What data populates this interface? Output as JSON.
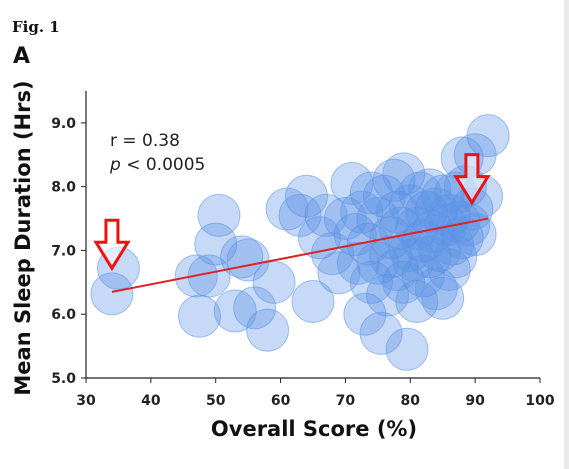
{
  "figure": {
    "label": "Fig. 1",
    "panel": "A"
  },
  "chart_data": {
    "type": "scatter",
    "title": "",
    "xlabel": "Overall Score (%)",
    "ylabel": "Mean Sleep Duration (Hrs)",
    "xlim": [
      30,
      100
    ],
    "ylim": [
      5.0,
      9.5
    ],
    "xticks": [
      "30",
      "40",
      "50",
      "60",
      "70",
      "80",
      "90",
      "100"
    ],
    "yticks": [
      "5.0",
      "6.0",
      "7.0",
      "8.0",
      "9.0"
    ],
    "annotation": {
      "r_text": "r = 0.38",
      "p_symbol": "p",
      "p_rest": " < 0.0005"
    },
    "trendline": {
      "x": [
        34,
        92
      ],
      "y": [
        6.35,
        7.5
      ],
      "color": "#dd2222"
    },
    "marker_color": "#5b93e6",
    "grid": false,
    "points": [
      {
        "x": 34,
        "y": 6.32
      },
      {
        "x": 35,
        "y": 6.72
      },
      {
        "x": 47,
        "y": 6.6
      },
      {
        "x": 47.5,
        "y": 5.97
      },
      {
        "x": 49,
        "y": 6.6
      },
      {
        "x": 50,
        "y": 7.1
      },
      {
        "x": 50.5,
        "y": 7.55
      },
      {
        "x": 53,
        "y": 6.05
      },
      {
        "x": 54,
        "y": 6.9
      },
      {
        "x": 55,
        "y": 6.85
      },
      {
        "x": 56,
        "y": 6.1
      },
      {
        "x": 58,
        "y": 5.75
      },
      {
        "x": 59,
        "y": 6.5
      },
      {
        "x": 61,
        "y": 7.65
      },
      {
        "x": 63,
        "y": 7.55
      },
      {
        "x": 64,
        "y": 7.85
      },
      {
        "x": 65,
        "y": 6.2
      },
      {
        "x": 66,
        "y": 7.2
      },
      {
        "x": 67,
        "y": 7.55
      },
      {
        "x": 68,
        "y": 6.95
      },
      {
        "x": 69,
        "y": 6.65
      },
      {
        "x": 70,
        "y": 7.5
      },
      {
        "x": 71,
        "y": 8.05
      },
      {
        "x": 71.5,
        "y": 7.25
      },
      {
        "x": 72,
        "y": 6.8
      },
      {
        "x": 72.5,
        "y": 7.6
      },
      {
        "x": 73,
        "y": 6.0
      },
      {
        "x": 73.5,
        "y": 7.1
      },
      {
        "x": 74,
        "y": 6.5
      },
      {
        "x": 74,
        "y": 7.9
      },
      {
        "x": 75,
        "y": 6.8
      },
      {
        "x": 75,
        "y": 7.5
      },
      {
        "x": 75.5,
        "y": 5.7
      },
      {
        "x": 76,
        "y": 7.85
      },
      {
        "x": 76.5,
        "y": 6.3
      },
      {
        "x": 77,
        "y": 7.2
      },
      {
        "x": 77,
        "y": 6.9
      },
      {
        "x": 77.5,
        "y": 8.1
      },
      {
        "x": 78,
        "y": 7.6
      },
      {
        "x": 78,
        "y": 6.7
      },
      {
        "x": 78.5,
        "y": 7.35
      },
      {
        "x": 79,
        "y": 8.2
      },
      {
        "x": 79,
        "y": 6.5
      },
      {
        "x": 79.5,
        "y": 5.45
      },
      {
        "x": 80,
        "y": 7.0
      },
      {
        "x": 80,
        "y": 7.7
      },
      {
        "x": 80.5,
        "y": 6.85
      },
      {
        "x": 81,
        "y": 6.2
      },
      {
        "x": 81,
        "y": 7.35
      },
      {
        "x": 81.5,
        "y": 7.9
      },
      {
        "x": 82,
        "y": 6.6
      },
      {
        "x": 82,
        "y": 7.15
      },
      {
        "x": 82.5,
        "y": 7.6
      },
      {
        "x": 83,
        "y": 6.9
      },
      {
        "x": 83,
        "y": 7.95
      },
      {
        "x": 83.5,
        "y": 7.3
      },
      {
        "x": 84,
        "y": 6.4
      },
      {
        "x": 84,
        "y": 7.65
      },
      {
        "x": 84.5,
        "y": 7.0
      },
      {
        "x": 85,
        "y": 6.25
      },
      {
        "x": 85,
        "y": 7.85
      },
      {
        "x": 85.5,
        "y": 7.4
      },
      {
        "x": 86,
        "y": 6.7
      },
      {
        "x": 86,
        "y": 7.55
      },
      {
        "x": 86.5,
        "y": 7.1
      },
      {
        "x": 87,
        "y": 7.9
      },
      {
        "x": 87,
        "y": 6.9
      },
      {
        "x": 87.5,
        "y": 7.45
      },
      {
        "x": 88,
        "y": 7.2
      },
      {
        "x": 88,
        "y": 8.45
      },
      {
        "x": 88.5,
        "y": 8.0
      },
      {
        "x": 89,
        "y": 7.4
      },
      {
        "x": 89.5,
        "y": 7.65
      },
      {
        "x": 90,
        "y": 7.25
      },
      {
        "x": 90,
        "y": 8.5
      },
      {
        "x": 91,
        "y": 7.85
      },
      {
        "x": 92,
        "y": 8.8
      }
    ],
    "highlight_arrows": [
      {
        "x": 34,
        "y": 6.72,
        "color": "#ee1111"
      },
      {
        "x": 89.5,
        "y": 7.75,
        "color": "#ee1111"
      }
    ]
  }
}
